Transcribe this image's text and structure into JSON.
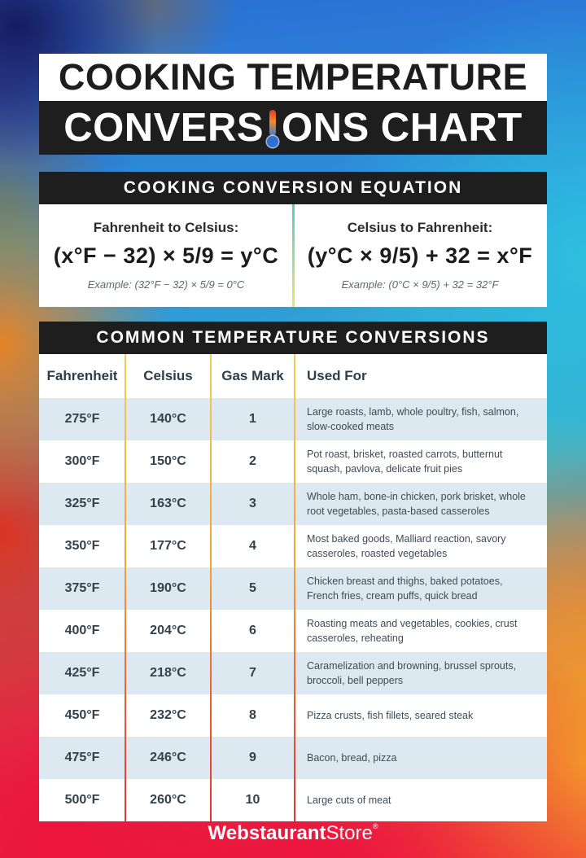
{
  "title": {
    "line1": "COOKING TEMPERATURE",
    "line2_before_icon": "CONVERS",
    "line2_after_icon": "ONS CHART"
  },
  "equation_card": {
    "header": "COOKING CONVERSION EQUATION",
    "left": {
      "label": "Fahrenheit to Celsius:",
      "formula": "(x°F − 32) × 5/9 = y°C",
      "example": "Example: (32°F − 32) × 5/9 = 0°C"
    },
    "right": {
      "label": "Celsius to Fahrenheit:",
      "formula": "(y°C × 9/5) + 32 = x°F",
      "example": "Example: (0°C × 9/5) + 32 = 32°F"
    }
  },
  "table_card": {
    "header": "COMMON TEMPERATURE CONVERSIONS",
    "columns": [
      "Fahrenheit",
      "Celsius",
      "Gas Mark",
      "Used For"
    ],
    "rows": [
      [
        "275°F",
        "140°C",
        "1",
        "Large roasts, lamb, whole poultry, fish, salmon, slow-cooked meats"
      ],
      [
        "300°F",
        "150°C",
        "2",
        "Pot roast, brisket, roasted carrots, butternut squash, pavlova, delicate fruit pies"
      ],
      [
        "325°F",
        "163°C",
        "3",
        "Whole ham, bone-in chicken, pork brisket, whole root vegetables, pasta-based casseroles"
      ],
      [
        "350°F",
        "177°C",
        "4",
        "Most baked goods, Malliard reaction, savory casseroles, roasted vegetables"
      ],
      [
        "375°F",
        "190°C",
        "5",
        "Chicken breast and thighs, baked potatoes, French fries, cream puffs, quick bread"
      ],
      [
        "400°F",
        "204°C",
        "6",
        "Roasting meats and vegetables, cookies, crust casseroles, reheating"
      ],
      [
        "425°F",
        "218°C",
        "7",
        "Caramelization and browning, brussel sprouts, broccoli, bell peppers"
      ],
      [
        "450°F",
        "232°C",
        "8",
        "Pizza crusts, fish fillets, seared steak"
      ],
      [
        "475°F",
        "246°C",
        "9",
        "Bacon, bread, pizza"
      ],
      [
        "500°F",
        "260°C",
        "10",
        "Large cuts of meat"
      ]
    ]
  },
  "footer": {
    "brand_bold": "Webstaurant",
    "brand_light": "Store",
    "registered_mark": "®"
  },
  "colors": {
    "bar_black": "#1e1e1e",
    "row_alt_blue": "#dde9f0",
    "text_dark": "#33424d",
    "column_divider_top": "#f2cd5a",
    "column_divider_bottom": "#e43333",
    "equation_divider_top": "#57cdbd",
    "equation_divider_bottom": "#f2e35e",
    "background_red": "#ec1a3e",
    "background_blue": "#2a7ad8",
    "background_cyan": "#2dc3e1",
    "background_orange": "#ee8220"
  },
  "chart_data": {
    "type": "table",
    "title": "Common Temperature Conversions",
    "columns": [
      "Fahrenheit",
      "Celsius",
      "Gas Mark",
      "Used For"
    ],
    "rows": [
      [
        "275°F",
        "140°C",
        "1",
        "Large roasts, lamb, whole poultry, fish, salmon, slow-cooked meats"
      ],
      [
        "300°F",
        "150°C",
        "2",
        "Pot roast, brisket, roasted carrots, butternut squash, pavlova, delicate fruit pies"
      ],
      [
        "325°F",
        "163°C",
        "3",
        "Whole ham, bone-in chicken, pork brisket, whole root vegetables, pasta-based casseroles"
      ],
      [
        "350°F",
        "177°C",
        "4",
        "Most baked goods, Malliard reaction, savory casseroles, roasted vegetables"
      ],
      [
        "375°F",
        "190°C",
        "5",
        "Chicken breast and thighs, baked potatoes, French fries, cream puffs, quick bread"
      ],
      [
        "400°F",
        "204°C",
        "6",
        "Roasting meats and vegetables, cookies, crust casseroles, reheating"
      ],
      [
        "425°F",
        "218°C",
        "7",
        "Caramelization and browning, brussel sprouts, broccoli, bell peppers"
      ],
      [
        "450°F",
        "232°C",
        "8",
        "Pizza crusts, fish fillets, seared steak"
      ],
      [
        "475°F",
        "246°C",
        "9",
        "Bacon, bread, pizza"
      ],
      [
        "500°F",
        "260°C",
        "10",
        "Large cuts of meat"
      ]
    ]
  }
}
